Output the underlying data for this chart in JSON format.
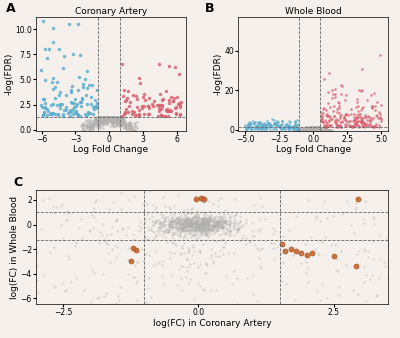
{
  "panel_A": {
    "title": "Coronary Artery",
    "xlabel": "Log Fold Change",
    "ylabel": "-log(FDR)",
    "xlim": [
      -6.5,
      6.8
    ],
    "ylim": [
      -0.1,
      11.2
    ],
    "vline1": -1.0,
    "vline2": 1.0,
    "hline": 1.3,
    "color_blue": "#5badcf",
    "color_pink": "#d96070",
    "color_gray": "#b0b0b0",
    "xticks": [
      -6,
      -3,
      0,
      3,
      6
    ],
    "yticks": [
      0.0,
      2.5,
      5.0,
      7.5,
      10.0
    ]
  },
  "panel_B": {
    "title": "Whole Blood",
    "xlabel": "Log Fold Change",
    "ylabel": "-log(FDR)",
    "xlim": [
      -5.5,
      5.5
    ],
    "ylim": [
      -0.5,
      57
    ],
    "vline1": -1.0,
    "vline2": 0.5,
    "hline": 1.3,
    "color_blue": "#5badcf",
    "color_pink": "#d96070",
    "color_gray": "#b0b0b0",
    "xticks": [
      -5.0,
      -2.5,
      0.0,
      2.5,
      5.0
    ],
    "yticks": [
      0,
      20,
      40
    ]
  },
  "panel_C": {
    "xlabel": "log(FC) in Coronary Artery",
    "ylabel": "log(FC) in Whole Blood",
    "xlim": [
      -3.0,
      3.5
    ],
    "ylim": [
      -6.5,
      2.8
    ],
    "vline1": -1.0,
    "vline2": 1.5,
    "hline1": 1.0,
    "hline2": -1.3,
    "color_orange": "#c8642a",
    "color_gray": "#b0b0b0",
    "xticks": [
      -2.5,
      0.0,
      2.5
    ],
    "yticks": [
      2,
      0,
      -2,
      -4,
      -6
    ]
  },
  "bg_color": "#f5f0eb",
  "label_fontsize": 6.5,
  "title_fontsize": 6.5,
  "tick_fontsize": 5.5
}
